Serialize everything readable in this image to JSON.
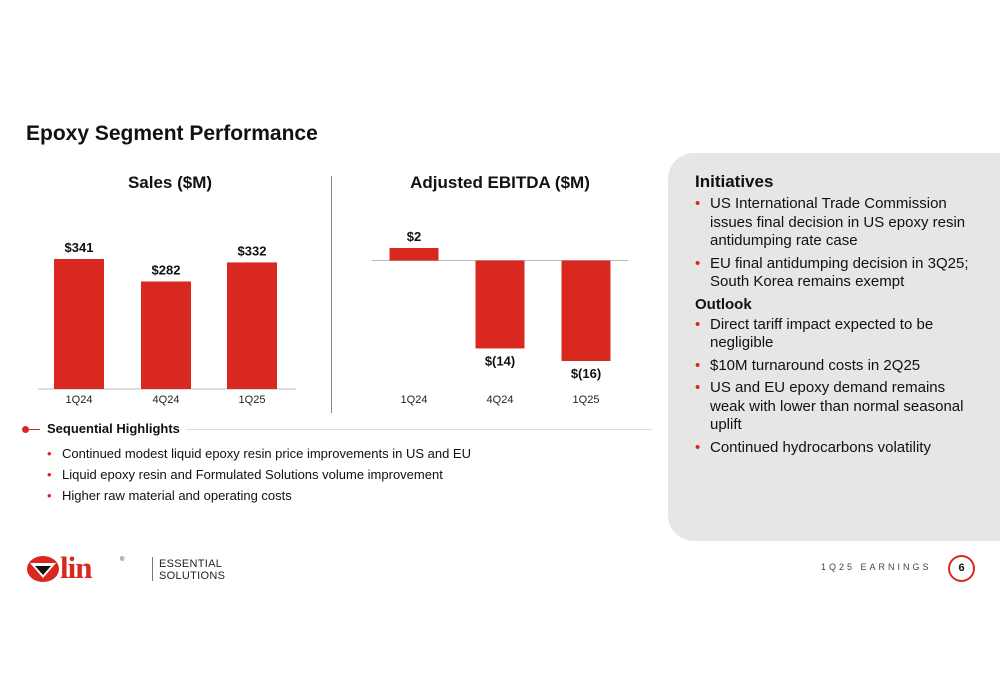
{
  "page_title": "Epoxy Segment Performance",
  "chart_data": [
    {
      "type": "bar",
      "title": "Sales ($M)",
      "categories": [
        "1Q24",
        "4Q24",
        "1Q25"
      ],
      "values": [
        341,
        282,
        332
      ],
      "value_labels": [
        "$341",
        "$282",
        "$332"
      ],
      "xlabel": "",
      "ylabel": "",
      "ylim": [
        0,
        341
      ],
      "grid": false,
      "color": "#d9281f"
    },
    {
      "type": "bar",
      "title": "Adjusted EBITDA ($M)",
      "categories": [
        "1Q24",
        "4Q24",
        "1Q25"
      ],
      "values": [
        2,
        -14,
        -16
      ],
      "value_labels": [
        "$2",
        "$(14)",
        "$(16)"
      ],
      "xlabel": "",
      "ylabel": "",
      "ylim": [
        -16,
        2
      ],
      "grid": false,
      "color": "#d9281f"
    }
  ],
  "highlights": {
    "title": "Sequential Highlights",
    "items": [
      "Continued modest liquid epoxy resin price improvements in US and EU",
      "Liquid epoxy resin and Formulated Solutions volume improvement",
      "Higher raw material and operating costs"
    ]
  },
  "side_panel": {
    "initiatives_heading": "Initiatives",
    "initiatives": [
      "US International Trade Commission issues final decision in US epoxy resin antidumping rate case",
      "EU final antidumping decision in 3Q25; South Korea remains exempt"
    ],
    "outlook_heading": "Outlook",
    "outlook": [
      "Direct tariff impact expected to be negligible",
      "$10M turnaround costs in 2Q25",
      "US and EU epoxy demand remains weak with lower than normal seasonal uplift",
      "Continued hydrocarbons volatility"
    ]
  },
  "bullet_glyph": "•",
  "logo": {
    "wordmark": "lin",
    "registered": "®",
    "line1": "ESSENTIAL",
    "line2": "SOLUTIONS"
  },
  "footer": {
    "label": "1Q25 EARNINGS",
    "page_number": "6"
  },
  "colors": {
    "accent": "#d9281f",
    "panel_bg": "#e6e6e6"
  }
}
